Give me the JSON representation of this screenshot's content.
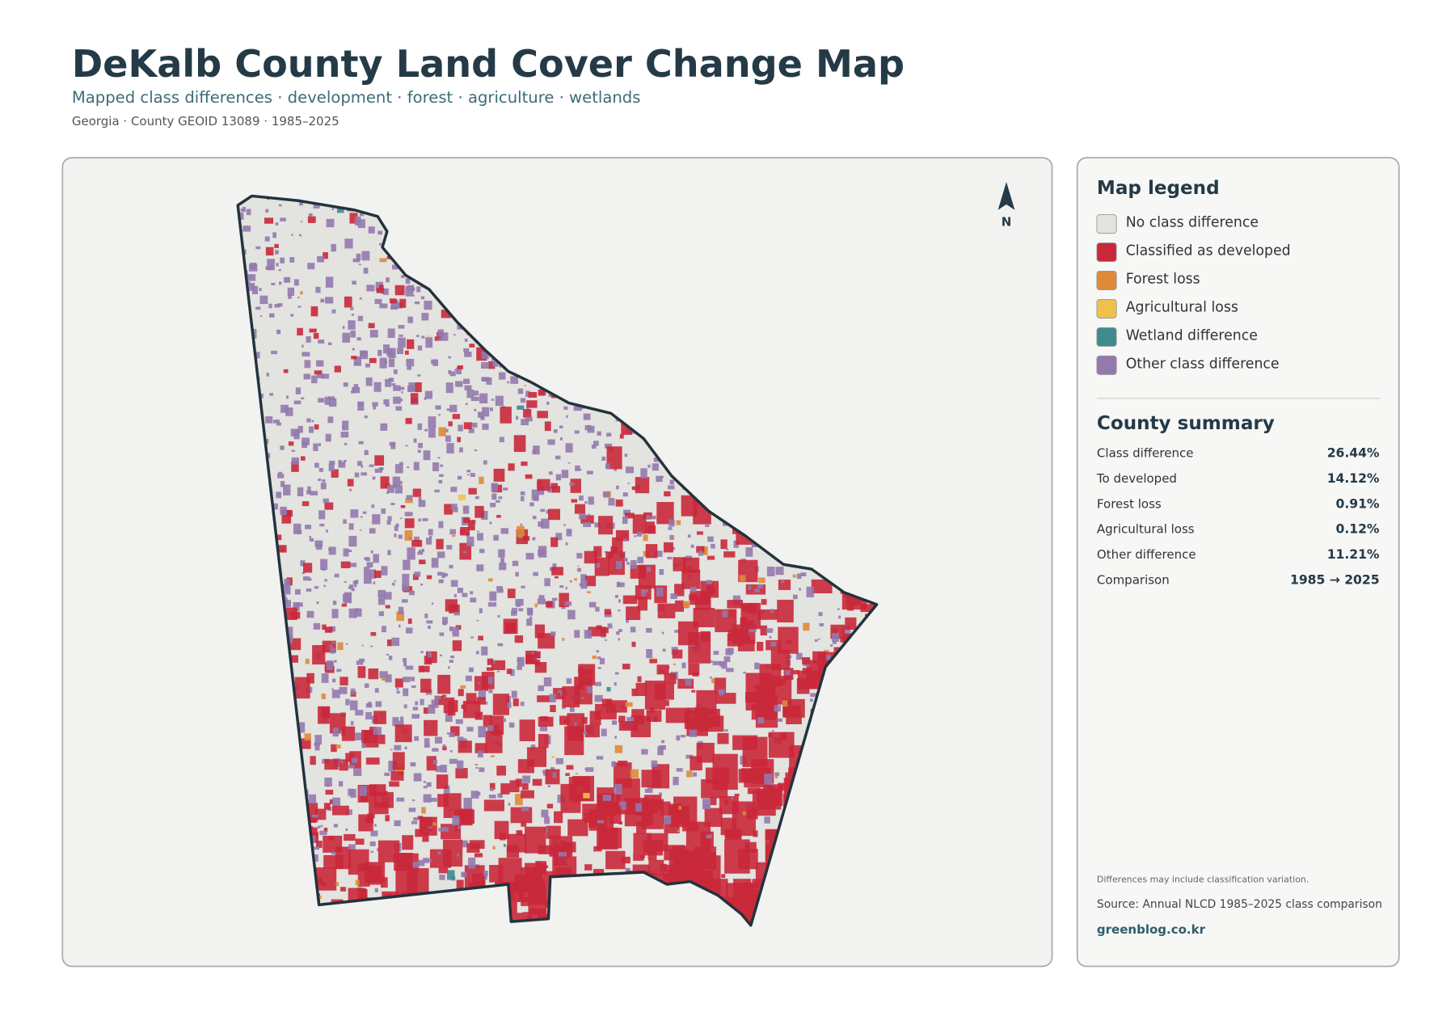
{
  "header": {
    "title": "DeKalb County Land Cover Change Map",
    "subtitle": "Mapped class differences · development · forest · agriculture · wetlands",
    "meta": "Georgia · County GEOID 13089 · 1985–2025"
  },
  "map": {
    "north_label": "N"
  },
  "legend": {
    "title": "Map legend",
    "items": [
      {
        "label": "No class difference",
        "color": "#e3e3e0"
      },
      {
        "label": "Classified as developed",
        "color": "#c9283a"
      },
      {
        "label": "Forest loss",
        "color": "#de8a38"
      },
      {
        "label": "Agricultural loss",
        "color": "#eec24a"
      },
      {
        "label": "Wetland difference",
        "color": "#3e8a8e"
      },
      {
        "label": "Other class difference",
        "color": "#9479ad"
      }
    ]
  },
  "summary": {
    "title": "County summary",
    "rows": [
      [
        "Class difference",
        "26.44%"
      ],
      [
        "To developed",
        "14.12%"
      ],
      [
        "Forest loss",
        "0.91%"
      ],
      [
        "Agricultural loss",
        "0.12%"
      ],
      [
        "Other difference",
        "11.21%"
      ],
      [
        "Comparison",
        "1985 → 2025"
      ]
    ]
  },
  "footer": {
    "note": "Differences may include classification variation.",
    "source": "Source: Annual NLCD 1985–2025 class comparison",
    "site": "greenblog.co.kr"
  }
}
